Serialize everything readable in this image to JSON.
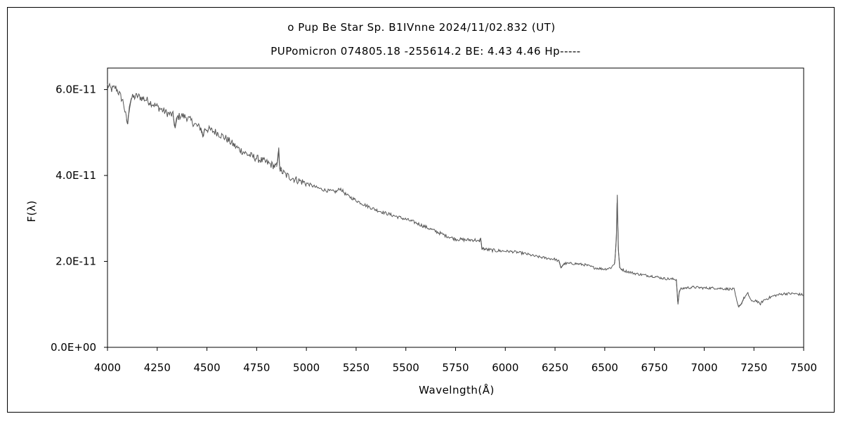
{
  "chart_data": {
    "type": "line",
    "title": "ο Pup  Be Star  Sp. B1IVnne  2024/11/02.832 (UT)",
    "subtitle": "PUPomicron 074805.18 -255614.2 BE: 4.43 4.46 Hp-----",
    "xlabel": "Wavelngth(Å)",
    "ylabel": "F(λ)",
    "xlim": [
      4000,
      7500
    ],
    "ylim": [
      0,
      6.5e-11
    ],
    "x_ticks": [
      4000,
      4250,
      4500,
      4750,
      5000,
      5250,
      5500,
      5750,
      6000,
      6250,
      6500,
      6750,
      7000,
      7250,
      7500
    ],
    "y_ticks": [
      {
        "value": 0,
        "label": "0.0E+00"
      },
      {
        "value": 2e-11,
        "label": "2.0E-11"
      },
      {
        "value": 4e-11,
        "label": "4.0E-11"
      },
      {
        "value": 6e-11,
        "label": "6.0E-11"
      }
    ],
    "grid": false,
    "color": "#555555",
    "series": [
      {
        "x": [
          4000,
          4020,
          4040,
          4060,
          4080,
          4095,
          4102,
          4110,
          4120,
          4150,
          4200,
          4250,
          4300,
          4330,
          4340,
          4350,
          4370,
          4400,
          4450,
          4470,
          4480,
          4490,
          4520,
          4550,
          4600,
          4650,
          4700,
          4750,
          4800,
          4850,
          4856,
          4861,
          4866,
          4875,
          4900,
          4950,
          5000,
          5050,
          5100,
          5150,
          5170,
          5200,
          5250,
          5300,
          5350,
          5400,
          5450,
          5500,
          5550,
          5600,
          5650,
          5700,
          5750,
          5800,
          5850,
          5870,
          5876,
          5882,
          5890,
          5900,
          5950,
          6000,
          6050,
          6100,
          6150,
          6200,
          6250,
          6270,
          6280,
          6290,
          6300,
          6350,
          6400,
          6450,
          6500,
          6530,
          6550,
          6558,
          6563,
          6568,
          6575,
          6600,
          6650,
          6700,
          6750,
          6800,
          6860,
          6868,
          6875,
          6880,
          6900,
          6950,
          7000,
          7050,
          7150,
          7170,
          7185,
          7200,
          7220,
          7240,
          7260,
          7280,
          7300,
          7350,
          7400,
          7450,
          7500
        ],
        "y": [
          6.1e-11,
          6e-11,
          6.05e-11,
          5.9e-11,
          5.7e-11,
          5.3e-11,
          5.2e-11,
          5.6e-11,
          5.8e-11,
          5.85e-11,
          5.75e-11,
          5.6e-11,
          5.45e-11,
          5.4e-11,
          5.1e-11,
          5.35e-11,
          5.4e-11,
          5.35e-11,
          5.15e-11,
          5.1e-11,
          4.9e-11,
          5.1e-11,
          5.05e-11,
          5e-11,
          4.85e-11,
          4.65e-11,
          4.5e-11,
          4.4e-11,
          4.3e-11,
          4.2e-11,
          4.35e-11,
          4.65e-11,
          4.15e-11,
          4.1e-11,
          4e-11,
          3.9e-11,
          3.82e-11,
          3.72e-11,
          3.65e-11,
          3.62e-11,
          3.7e-11,
          3.55e-11,
          3.42e-11,
          3.3e-11,
          3.2e-11,
          3.12e-11,
          3.05e-11,
          2.98e-11,
          2.9e-11,
          2.8e-11,
          2.7e-11,
          2.6e-11,
          2.52e-11,
          2.5e-11,
          2.5e-11,
          2.45e-11,
          2.55e-11,
          2.3e-11,
          2.3e-11,
          2.28e-11,
          2.25e-11,
          2.24e-11,
          2.22e-11,
          2.18e-11,
          2.12e-11,
          2.08e-11,
          2.05e-11,
          2e-11,
          1.85e-11,
          1.92e-11,
          1.95e-11,
          1.95e-11,
          1.92e-11,
          1.85e-11,
          1.82e-11,
          1.85e-11,
          1.95e-11,
          2.5e-11,
          3.55e-11,
          2.3e-11,
          1.85e-11,
          1.78e-11,
          1.72e-11,
          1.68e-11,
          1.65e-11,
          1.6e-11,
          1.58e-11,
          1e-11,
          1.3e-11,
          1.35e-11,
          1.38e-11,
          1.4e-11,
          1.38e-11,
          1.38e-11,
          1.35e-11,
          9.5e-12,
          1e-11,
          1.15e-11,
          1.25e-11,
          1.05e-11,
          1.1e-11,
          1e-11,
          1.1e-11,
          1.2e-11,
          1.25e-11,
          1.25e-11,
          1.22e-11
        ]
      }
    ]
  }
}
